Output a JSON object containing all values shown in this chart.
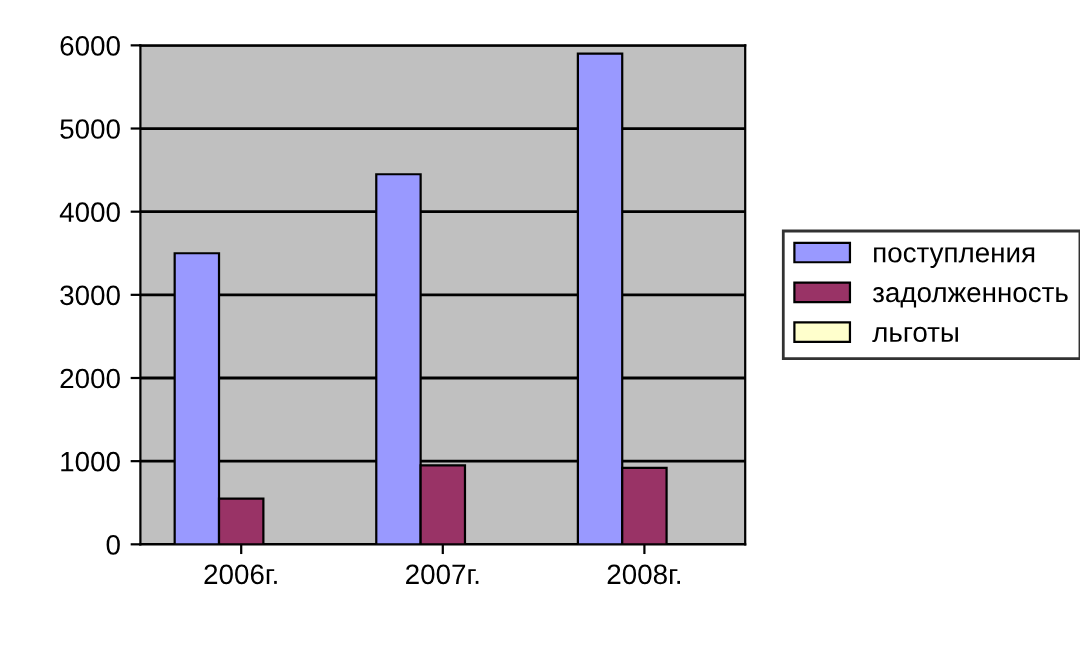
{
  "chart_data": {
    "type": "bar",
    "categories": [
      "2006г.",
      "2007г.",
      "2008г."
    ],
    "series": [
      {
        "name": "поступления",
        "color": "#9999ff",
        "values": [
          3500,
          4450,
          5900
        ]
      },
      {
        "name": "задолженность",
        "color": "#993366",
        "values": [
          550,
          950,
          920
        ]
      },
      {
        "name": "льготы",
        "color": "#ffffcc",
        "values": [
          null,
          null,
          null
        ]
      }
    ],
    "ylim": [
      0,
      6000
    ],
    "yticks": [
      0,
      1000,
      2000,
      3000,
      4000,
      5000,
      6000
    ],
    "grid": "y",
    "legend": "right"
  }
}
